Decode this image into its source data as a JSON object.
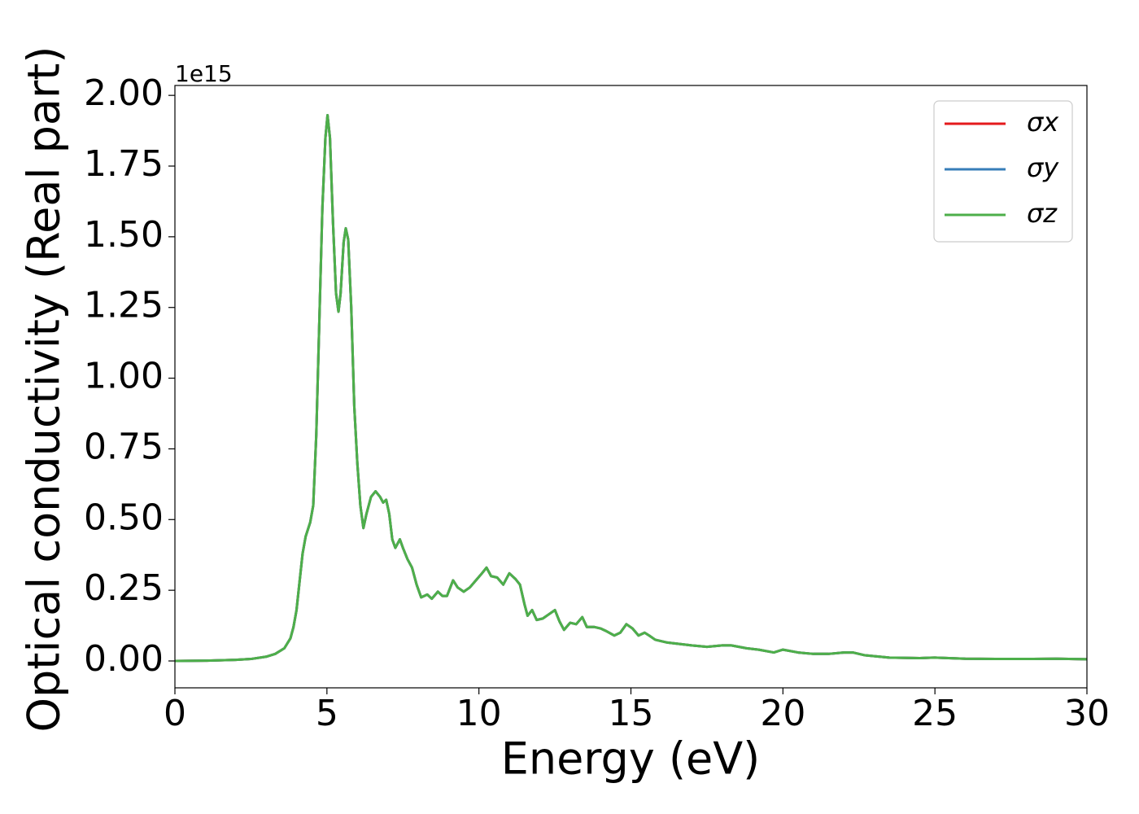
{
  "chart_data": {
    "type": "line",
    "xlabel": "Energy (eV)",
    "ylabel": "Optical conductivity (Real part)",
    "y_offset_label": "1e15",
    "xlim": [
      0,
      30
    ],
    "xticks": [
      0,
      5,
      10,
      15,
      20,
      25,
      30
    ],
    "ylim": [
      -0.095,
      2.035
    ],
    "yticks": [
      {
        "value": 0,
        "label": "0.00"
      },
      {
        "value": 0.25,
        "label": "0.25"
      },
      {
        "value": 0.5,
        "label": "0.50"
      },
      {
        "value": 0.75,
        "label": "0.75"
      },
      {
        "value": 1.0,
        "label": "1.00"
      },
      {
        "value": 1.25,
        "label": "1.25"
      },
      {
        "value": 1.5,
        "label": "1.50"
      },
      {
        "value": 1.75,
        "label": "1.75"
      },
      {
        "value": 2.0,
        "label": "2.00"
      }
    ],
    "legend": "upper right",
    "grid": false,
    "x": [
      0,
      1,
      2,
      2.5,
      3,
      3.3,
      3.6,
      3.8,
      3.9,
      4.0,
      4.1,
      4.2,
      4.3,
      4.45,
      4.55,
      4.65,
      4.75,
      4.85,
      4.95,
      5.02,
      5.1,
      5.2,
      5.3,
      5.38,
      5.45,
      5.55,
      5.62,
      5.7,
      5.8,
      5.9,
      6.0,
      6.1,
      6.2,
      6.3,
      6.45,
      6.6,
      6.75,
      6.85,
      6.95,
      7.05,
      7.15,
      7.25,
      7.4,
      7.5,
      7.65,
      7.8,
      7.95,
      8.1,
      8.3,
      8.45,
      8.65,
      8.8,
      8.95,
      9.15,
      9.3,
      9.5,
      9.7,
      9.9,
      10.1,
      10.25,
      10.4,
      10.6,
      10.8,
      11.0,
      11.2,
      11.35,
      11.5,
      11.6,
      11.75,
      11.9,
      12.1,
      12.3,
      12.5,
      12.65,
      12.8,
      13.0,
      13.2,
      13.4,
      13.55,
      13.8,
      14.0,
      14.2,
      14.45,
      14.65,
      14.85,
      15.05,
      15.25,
      15.45,
      15.6,
      15.8,
      16.2,
      16.6,
      17.0,
      17.5,
      18.0,
      18.3,
      18.8,
      19.2,
      19.7,
      20.0,
      20.5,
      21.0,
      21.5,
      22.0,
      22.3,
      22.7,
      23.5,
      24.5,
      25.0,
      26,
      27,
      28,
      29,
      30
    ],
    "series": [
      {
        "name": "σx",
        "color": "#e41a1c",
        "values": [
          0,
          0.001,
          0.004,
          0.007,
          0.015,
          0.025,
          0.045,
          0.08,
          0.12,
          0.18,
          0.28,
          0.38,
          0.44,
          0.49,
          0.55,
          0.8,
          1.2,
          1.6,
          1.85,
          1.93,
          1.85,
          1.55,
          1.3,
          1.235,
          1.3,
          1.48,
          1.53,
          1.49,
          1.25,
          0.9,
          0.7,
          0.55,
          0.47,
          0.52,
          0.58,
          0.6,
          0.58,
          0.56,
          0.57,
          0.52,
          0.43,
          0.4,
          0.43,
          0.4,
          0.36,
          0.33,
          0.27,
          0.225,
          0.235,
          0.22,
          0.245,
          0.23,
          0.23,
          0.285,
          0.26,
          0.245,
          0.26,
          0.285,
          0.31,
          0.33,
          0.3,
          0.295,
          0.27,
          0.31,
          0.29,
          0.27,
          0.2,
          0.16,
          0.18,
          0.145,
          0.15,
          0.165,
          0.18,
          0.14,
          0.11,
          0.135,
          0.13,
          0.155,
          0.12,
          0.12,
          0.115,
          0.105,
          0.09,
          0.1,
          0.13,
          0.115,
          0.09,
          0.1,
          0.09,
          0.075,
          0.065,
          0.06,
          0.055,
          0.05,
          0.055,
          0.055,
          0.045,
          0.04,
          0.03,
          0.04,
          0.03,
          0.025,
          0.025,
          0.03,
          0.03,
          0.02,
          0.012,
          0.01,
          0.012,
          0.008,
          0.007,
          0.007,
          0.008,
          0.006
        ]
      },
      {
        "name": "σy",
        "color": "#377eb8",
        "values": [
          0,
          0.001,
          0.004,
          0.007,
          0.015,
          0.025,
          0.045,
          0.08,
          0.12,
          0.18,
          0.28,
          0.38,
          0.44,
          0.49,
          0.55,
          0.8,
          1.2,
          1.6,
          1.85,
          1.93,
          1.85,
          1.55,
          1.3,
          1.235,
          1.3,
          1.48,
          1.53,
          1.49,
          1.25,
          0.9,
          0.7,
          0.55,
          0.47,
          0.52,
          0.58,
          0.6,
          0.58,
          0.56,
          0.57,
          0.52,
          0.43,
          0.4,
          0.43,
          0.4,
          0.36,
          0.33,
          0.27,
          0.225,
          0.235,
          0.22,
          0.245,
          0.23,
          0.23,
          0.285,
          0.26,
          0.245,
          0.26,
          0.285,
          0.31,
          0.33,
          0.3,
          0.295,
          0.27,
          0.31,
          0.29,
          0.27,
          0.2,
          0.16,
          0.18,
          0.145,
          0.15,
          0.165,
          0.18,
          0.14,
          0.11,
          0.135,
          0.13,
          0.155,
          0.12,
          0.12,
          0.115,
          0.105,
          0.09,
          0.1,
          0.13,
          0.115,
          0.09,
          0.1,
          0.09,
          0.075,
          0.065,
          0.06,
          0.055,
          0.05,
          0.055,
          0.055,
          0.045,
          0.04,
          0.03,
          0.04,
          0.03,
          0.025,
          0.025,
          0.03,
          0.03,
          0.02,
          0.012,
          0.01,
          0.012,
          0.008,
          0.007,
          0.007,
          0.008,
          0.006
        ]
      },
      {
        "name": "σz",
        "color": "#4daf4a",
        "values": [
          0,
          0.001,
          0.004,
          0.007,
          0.015,
          0.025,
          0.045,
          0.08,
          0.12,
          0.18,
          0.28,
          0.38,
          0.44,
          0.49,
          0.55,
          0.8,
          1.2,
          1.6,
          1.85,
          1.93,
          1.85,
          1.55,
          1.3,
          1.235,
          1.3,
          1.48,
          1.53,
          1.49,
          1.25,
          0.9,
          0.7,
          0.55,
          0.47,
          0.52,
          0.58,
          0.6,
          0.58,
          0.56,
          0.57,
          0.52,
          0.43,
          0.4,
          0.43,
          0.4,
          0.36,
          0.33,
          0.27,
          0.225,
          0.235,
          0.22,
          0.245,
          0.23,
          0.23,
          0.285,
          0.26,
          0.245,
          0.26,
          0.285,
          0.31,
          0.33,
          0.3,
          0.295,
          0.27,
          0.31,
          0.29,
          0.27,
          0.2,
          0.16,
          0.18,
          0.145,
          0.15,
          0.165,
          0.18,
          0.14,
          0.11,
          0.135,
          0.13,
          0.155,
          0.12,
          0.12,
          0.115,
          0.105,
          0.09,
          0.1,
          0.13,
          0.115,
          0.09,
          0.1,
          0.09,
          0.075,
          0.065,
          0.06,
          0.055,
          0.05,
          0.055,
          0.055,
          0.045,
          0.04,
          0.03,
          0.04,
          0.03,
          0.025,
          0.025,
          0.03,
          0.03,
          0.02,
          0.012,
          0.01,
          0.012,
          0.008,
          0.007,
          0.007,
          0.008,
          0.006
        ]
      }
    ]
  }
}
